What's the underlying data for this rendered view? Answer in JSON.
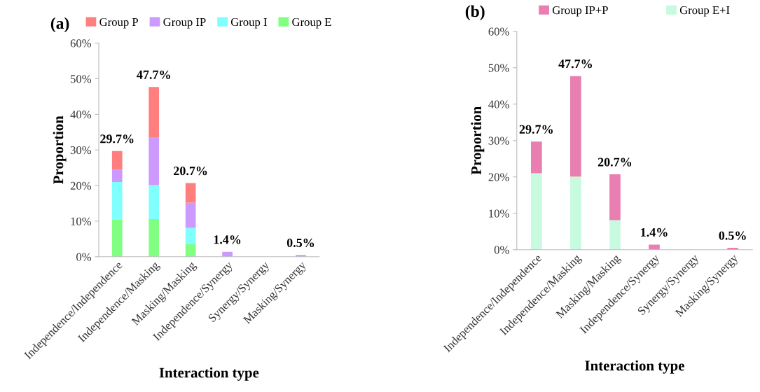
{
  "chart_data": [
    {
      "type": "bar",
      "title": "(a)",
      "xlabel": "Interaction type",
      "ylabel": "Proportion",
      "stacked": true,
      "categories": [
        "Independence/Independence",
        "Independence/Masking",
        "Masking/Masking",
        "Independence/Synergy",
        "Synergy/Synergy",
        "Masking/Synergy"
      ],
      "series": [
        {
          "name": "Group E",
          "color": "#80ff80",
          "values": [
            10.4,
            10.6,
            3.5,
            0,
            0,
            0
          ]
        },
        {
          "name": "Group I",
          "color": "#80ffff",
          "values": [
            10.6,
            9.5,
            4.6,
            0,
            0,
            0
          ]
        },
        {
          "name": "Group IP",
          "color": "#cc99ff",
          "values": [
            3.5,
            13.5,
            7.1,
            1.4,
            0,
            0.5
          ]
        },
        {
          "name": "Group P",
          "color": "#ff7f7f",
          "values": [
            5.2,
            14.1,
            5.5,
            0,
            0,
            0
          ]
        }
      ],
      "totals": [
        "29.7%",
        "47.7%",
        "20.7%",
        "1.4%",
        null,
        "0.5%"
      ],
      "ylim": [
        0,
        60
      ],
      "yticks": [
        {
          "value": 0,
          "label": "0%"
        },
        {
          "value": 10,
          "label": "10%"
        },
        {
          "value": 20,
          "label": "20%"
        },
        {
          "value": 30,
          "label": "30%"
        },
        {
          "value": 40,
          "label": "40%"
        },
        {
          "value": 50,
          "label": "50%"
        },
        {
          "value": 60,
          "label": "60%"
        }
      ],
      "legend": "top",
      "grid": false
    },
    {
      "type": "bar",
      "title": "(b)",
      "xlabel": "Interaction type",
      "ylabel": "Proportion",
      "stacked": true,
      "categories": [
        "Independence/Independence",
        "Independence/Masking",
        "Masking/Masking",
        "Independence/Synergy",
        "Synergy/Synergy",
        "Masking/Synergy"
      ],
      "series": [
        {
          "name": "Group E+I",
          "color": "#c8fae0",
          "values": [
            21.0,
            20.1,
            8.1,
            0,
            0,
            0
          ]
        },
        {
          "name": "Group IP+P",
          "color": "#e87fb0",
          "values": [
            8.7,
            27.6,
            12.6,
            1.4,
            0,
            0.5
          ]
        }
      ],
      "totals": [
        "29.7%",
        "47.7%",
        "20.7%",
        "1.4%",
        null,
        "0.5%"
      ],
      "ylim": [
        0,
        60
      ],
      "yticks": [
        {
          "value": 0,
          "label": "0%"
        },
        {
          "value": 10,
          "label": "10%"
        },
        {
          "value": 20,
          "label": "20%"
        },
        {
          "value": 30,
          "label": "30%"
        },
        {
          "value": 40,
          "label": "40%"
        },
        {
          "value": 50,
          "label": "50%"
        },
        {
          "value": 60,
          "label": "60%"
        }
      ],
      "legend": "top",
      "grid": false
    }
  ]
}
